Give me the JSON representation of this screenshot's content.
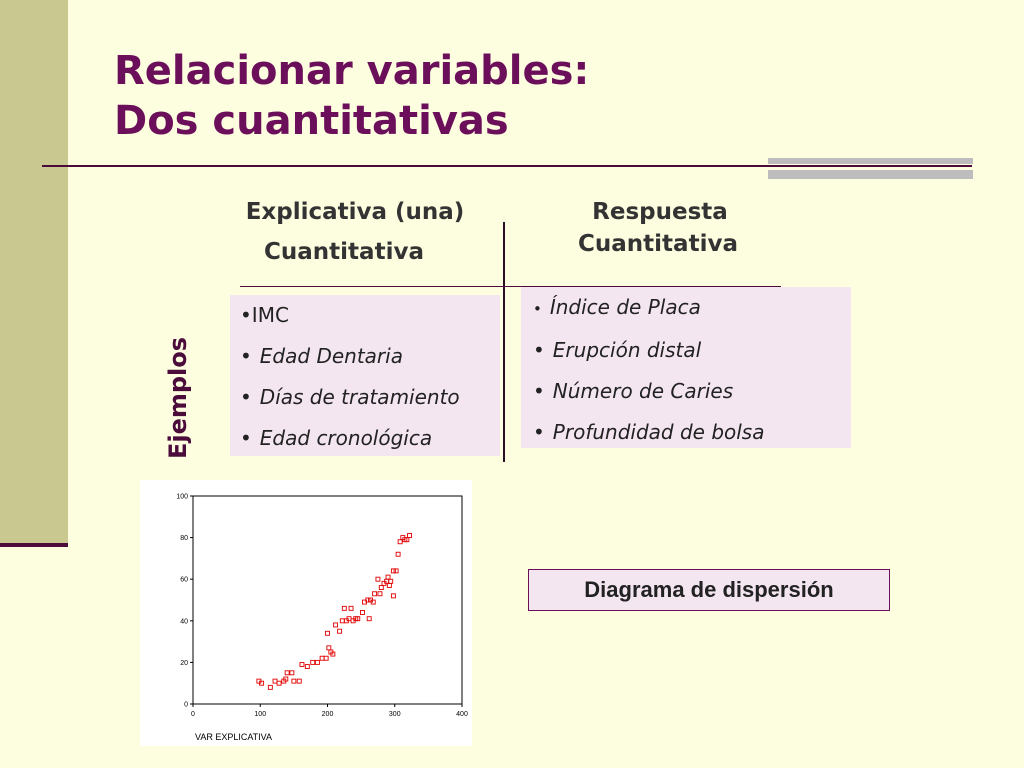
{
  "slide": {
    "title_line1": "Relacionar variables:",
    "title_line2": "Dos cuantitativas",
    "colors": {
      "title": "#6b0f5a",
      "accent_bar": "#c8c890",
      "box_fill": "#f3e6f1",
      "marker": "#e00000"
    }
  },
  "table": {
    "explicativa_heading_1": "Explicativa (una)",
    "explicativa_heading_2": "Cuantitativa",
    "respuesta_heading_1": "Respuesta",
    "respuesta_heading_2": "Cuantitativa",
    "row_label": "Ejemplos",
    "explicativa_items": [
      {
        "bullet": "•",
        "text": "IMC",
        "italic": false
      },
      {
        "bullet": "•",
        "text": "Edad Dentaria",
        "italic": true
      },
      {
        "bullet": "•",
        "text": "Días de tratamiento",
        "italic": true
      },
      {
        "bullet": "•",
        "text": "Edad cronológica",
        "italic": true
      }
    ],
    "respuesta_items": [
      {
        "bullet": "•",
        "text": "Índice de Placa"
      },
      {
        "bullet": "•",
        "text": "Erupción distal"
      },
      {
        "bullet": "•",
        "text": "Número de Caries"
      },
      {
        "bullet": "•",
        "text": "Profundidad de bolsa"
      }
    ]
  },
  "diagram_label": "Diagrama de dispersión",
  "chart_data": {
    "type": "scatter",
    "xlabel": "VAR EXPLICATIVA",
    "ylabel": "",
    "xlim": [
      0,
      400
    ],
    "ylim": [
      0,
      100
    ],
    "xticks": [
      0,
      100,
      200,
      300,
      400
    ],
    "yticks": [
      0,
      20,
      40,
      60,
      80,
      100
    ],
    "grid": false,
    "marker": "open-square",
    "points": [
      [
        98,
        11
      ],
      [
        102,
        10
      ],
      [
        115,
        8
      ],
      [
        122,
        11
      ],
      [
        128,
        10
      ],
      [
        135,
        11
      ],
      [
        138,
        12
      ],
      [
        140,
        15
      ],
      [
        147,
        15
      ],
      [
        150,
        11
      ],
      [
        158,
        11
      ],
      [
        162,
        19
      ],
      [
        170,
        18
      ],
      [
        178,
        20
      ],
      [
        185,
        20
      ],
      [
        192,
        22
      ],
      [
        198,
        22
      ],
      [
        200,
        34
      ],
      [
        202,
        27
      ],
      [
        205,
        25
      ],
      [
        208,
        24
      ],
      [
        212,
        38
      ],
      [
        218,
        35
      ],
      [
        222,
        40
      ],
      [
        225,
        46
      ],
      [
        228,
        40
      ],
      [
        232,
        41
      ],
      [
        235,
        46
      ],
      [
        238,
        40
      ],
      [
        242,
        41
      ],
      [
        245,
        41
      ],
      [
        252,
        44
      ],
      [
        255,
        49
      ],
      [
        260,
        50
      ],
      [
        262,
        41
      ],
      [
        264,
        50
      ],
      [
        268,
        49
      ],
      [
        270,
        53
      ],
      [
        275,
        60
      ],
      [
        278,
        53
      ],
      [
        280,
        56
      ],
      [
        284,
        58
      ],
      [
        288,
        59
      ],
      [
        290,
        61
      ],
      [
        292,
        57
      ],
      [
        294,
        59
      ],
      [
        298,
        52
      ],
      [
        298,
        64
      ],
      [
        302,
        64
      ],
      [
        305,
        72
      ],
      [
        308,
        78
      ],
      [
        312,
        80
      ],
      [
        315,
        79
      ],
      [
        318,
        79
      ],
      [
        322,
        81
      ]
    ]
  }
}
